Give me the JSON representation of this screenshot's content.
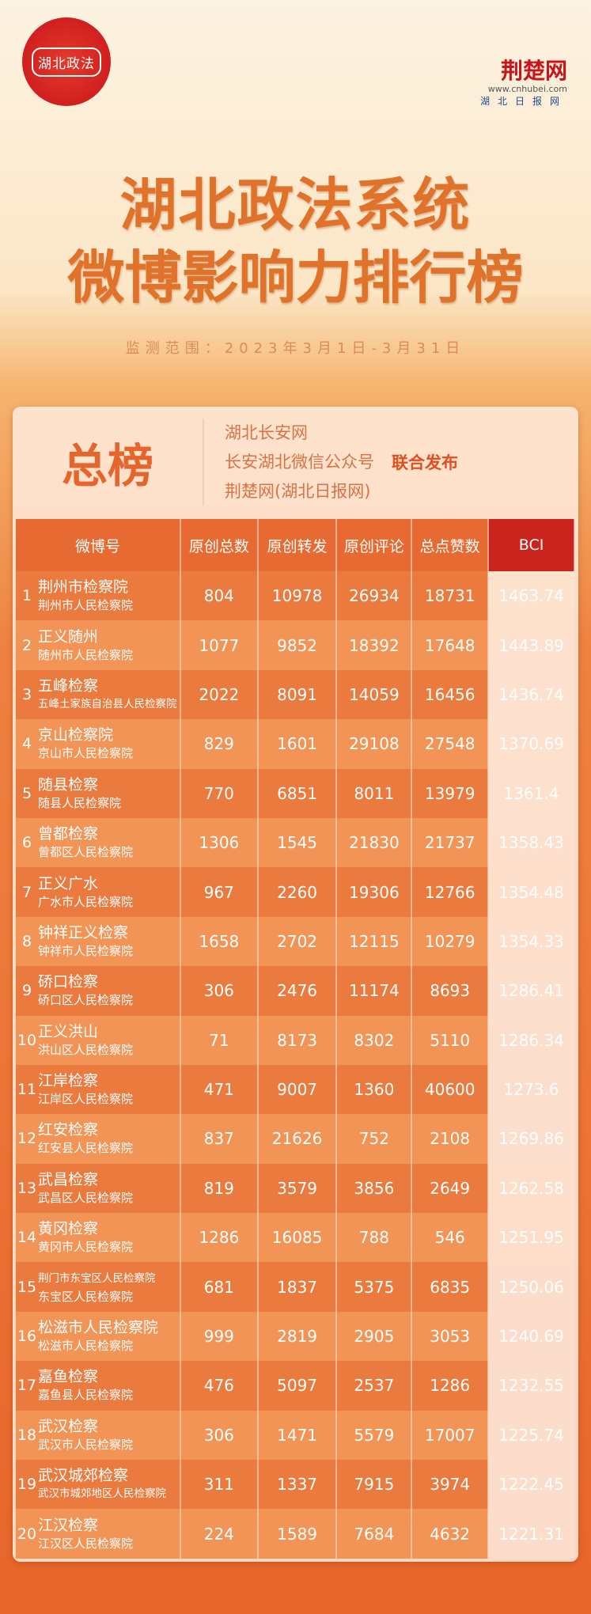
{
  "logo_left": "湖北政法",
  "brand": {
    "name": "荆楚网",
    "url": "www.cnhubei.com",
    "sub": "湖北日报网"
  },
  "title_line1": "湖北政法系统",
  "title_line2": "微博影响力排行榜",
  "monitoring": "监测范围：2023年3月1日-3月31日",
  "board": {
    "name": "总榜",
    "sources": [
      "湖北长安网",
      "长安湖北微信公众号",
      "荆楚网(湖北日报网)"
    ],
    "joint": "联合发布"
  },
  "colors": {
    "accent": "#e5652d",
    "bci_header": "#c9251e"
  },
  "table": {
    "headers": [
      "微博号",
      "原创总数",
      "原创转发",
      "原创评论",
      "总点赞数",
      "BCI"
    ],
    "rows": [
      {
        "rank": "1",
        "name": "荆州市检察院",
        "org": "荆州市人民检察院",
        "v": [
          "804",
          "10978",
          "26934",
          "18731",
          "1463.74"
        ]
      },
      {
        "rank": "2",
        "name": "正义随州",
        "org": "随州市人民检察院",
        "v": [
          "1077",
          "9852",
          "18392",
          "17648",
          "1443.89"
        ]
      },
      {
        "rank": "3",
        "name": "五峰检察",
        "org": "五峰土家族自治县人民检察院",
        "v": [
          "2022",
          "8091",
          "14059",
          "16456",
          "1436.74"
        ]
      },
      {
        "rank": "4",
        "name": "京山检察院",
        "org": "京山市人民检察院",
        "v": [
          "829",
          "1601",
          "29108",
          "27548",
          "1370.69"
        ]
      },
      {
        "rank": "5",
        "name": "随县检察",
        "org": "随县人民检察院",
        "v": [
          "770",
          "6851",
          "8011",
          "13979",
          "1361.4"
        ]
      },
      {
        "rank": "6",
        "name": "曾都检察",
        "org": "曾都区人民检察院",
        "v": [
          "1306",
          "1545",
          "21830",
          "21737",
          "1358.43"
        ]
      },
      {
        "rank": "7",
        "name": "正义广水",
        "org": "广水市人民检察院",
        "v": [
          "967",
          "2260",
          "19306",
          "12766",
          "1354.48"
        ]
      },
      {
        "rank": "8",
        "name": "钟祥正义检察",
        "org": "钟祥市人民检察院",
        "v": [
          "1658",
          "2702",
          "12115",
          "10279",
          "1354.33"
        ]
      },
      {
        "rank": "9",
        "name": "硚口检察",
        "org": "硚口区人民检察院",
        "v": [
          "306",
          "2476",
          "11174",
          "8693",
          "1286.41"
        ]
      },
      {
        "rank": "10",
        "name": "正义洪山",
        "org": "洪山区人民检察院",
        "v": [
          "71",
          "8173",
          "8302",
          "5110",
          "1286.34"
        ]
      },
      {
        "rank": "11",
        "name": "江岸检察",
        "org": "江岸区人民检察院",
        "v": [
          "471",
          "9007",
          "1360",
          "40600",
          "1273.6"
        ]
      },
      {
        "rank": "12",
        "name": "红安检察",
        "org": "红安县人民检察院",
        "v": [
          "837",
          "21626",
          "752",
          "2108",
          "1269.86"
        ]
      },
      {
        "rank": "13",
        "name": "武昌检察",
        "org": "武昌区人民检察院",
        "v": [
          "819",
          "3579",
          "3856",
          "2649",
          "1262.58"
        ]
      },
      {
        "rank": "14",
        "name": "黄冈检察",
        "org": "黄冈市人民检察院",
        "v": [
          "1286",
          "16085",
          "788",
          "546",
          "1251.95"
        ]
      },
      {
        "rank": "15",
        "name": "荆门市东宝区人民检察院",
        "org": "东宝区人民检察院",
        "v": [
          "681",
          "1837",
          "5375",
          "6835",
          "1250.06"
        ]
      },
      {
        "rank": "16",
        "name": "松滋市人民检察院",
        "org": "松滋市人民检察院",
        "v": [
          "999",
          "2819",
          "2905",
          "3053",
          "1240.69"
        ]
      },
      {
        "rank": "17",
        "name": "嘉鱼检察",
        "org": "嘉鱼县人民检察院",
        "v": [
          "476",
          "5097",
          "2537",
          "1286",
          "1232.55"
        ]
      },
      {
        "rank": "18",
        "name": "武汉检察",
        "org": "武汉市人民检察院",
        "v": [
          "306",
          "1471",
          "5579",
          "17007",
          "1225.74"
        ]
      },
      {
        "rank": "19",
        "name": "武汉城郊检察",
        "org": "武汉市城郊地区人民检察院",
        "v": [
          "311",
          "1337",
          "7915",
          "3974",
          "1222.45"
        ]
      },
      {
        "rank": "20",
        "name": "江汉检察",
        "org": "江汉区人民检察院",
        "v": [
          "224",
          "1589",
          "7684",
          "4632",
          "1221.31"
        ]
      }
    ]
  }
}
